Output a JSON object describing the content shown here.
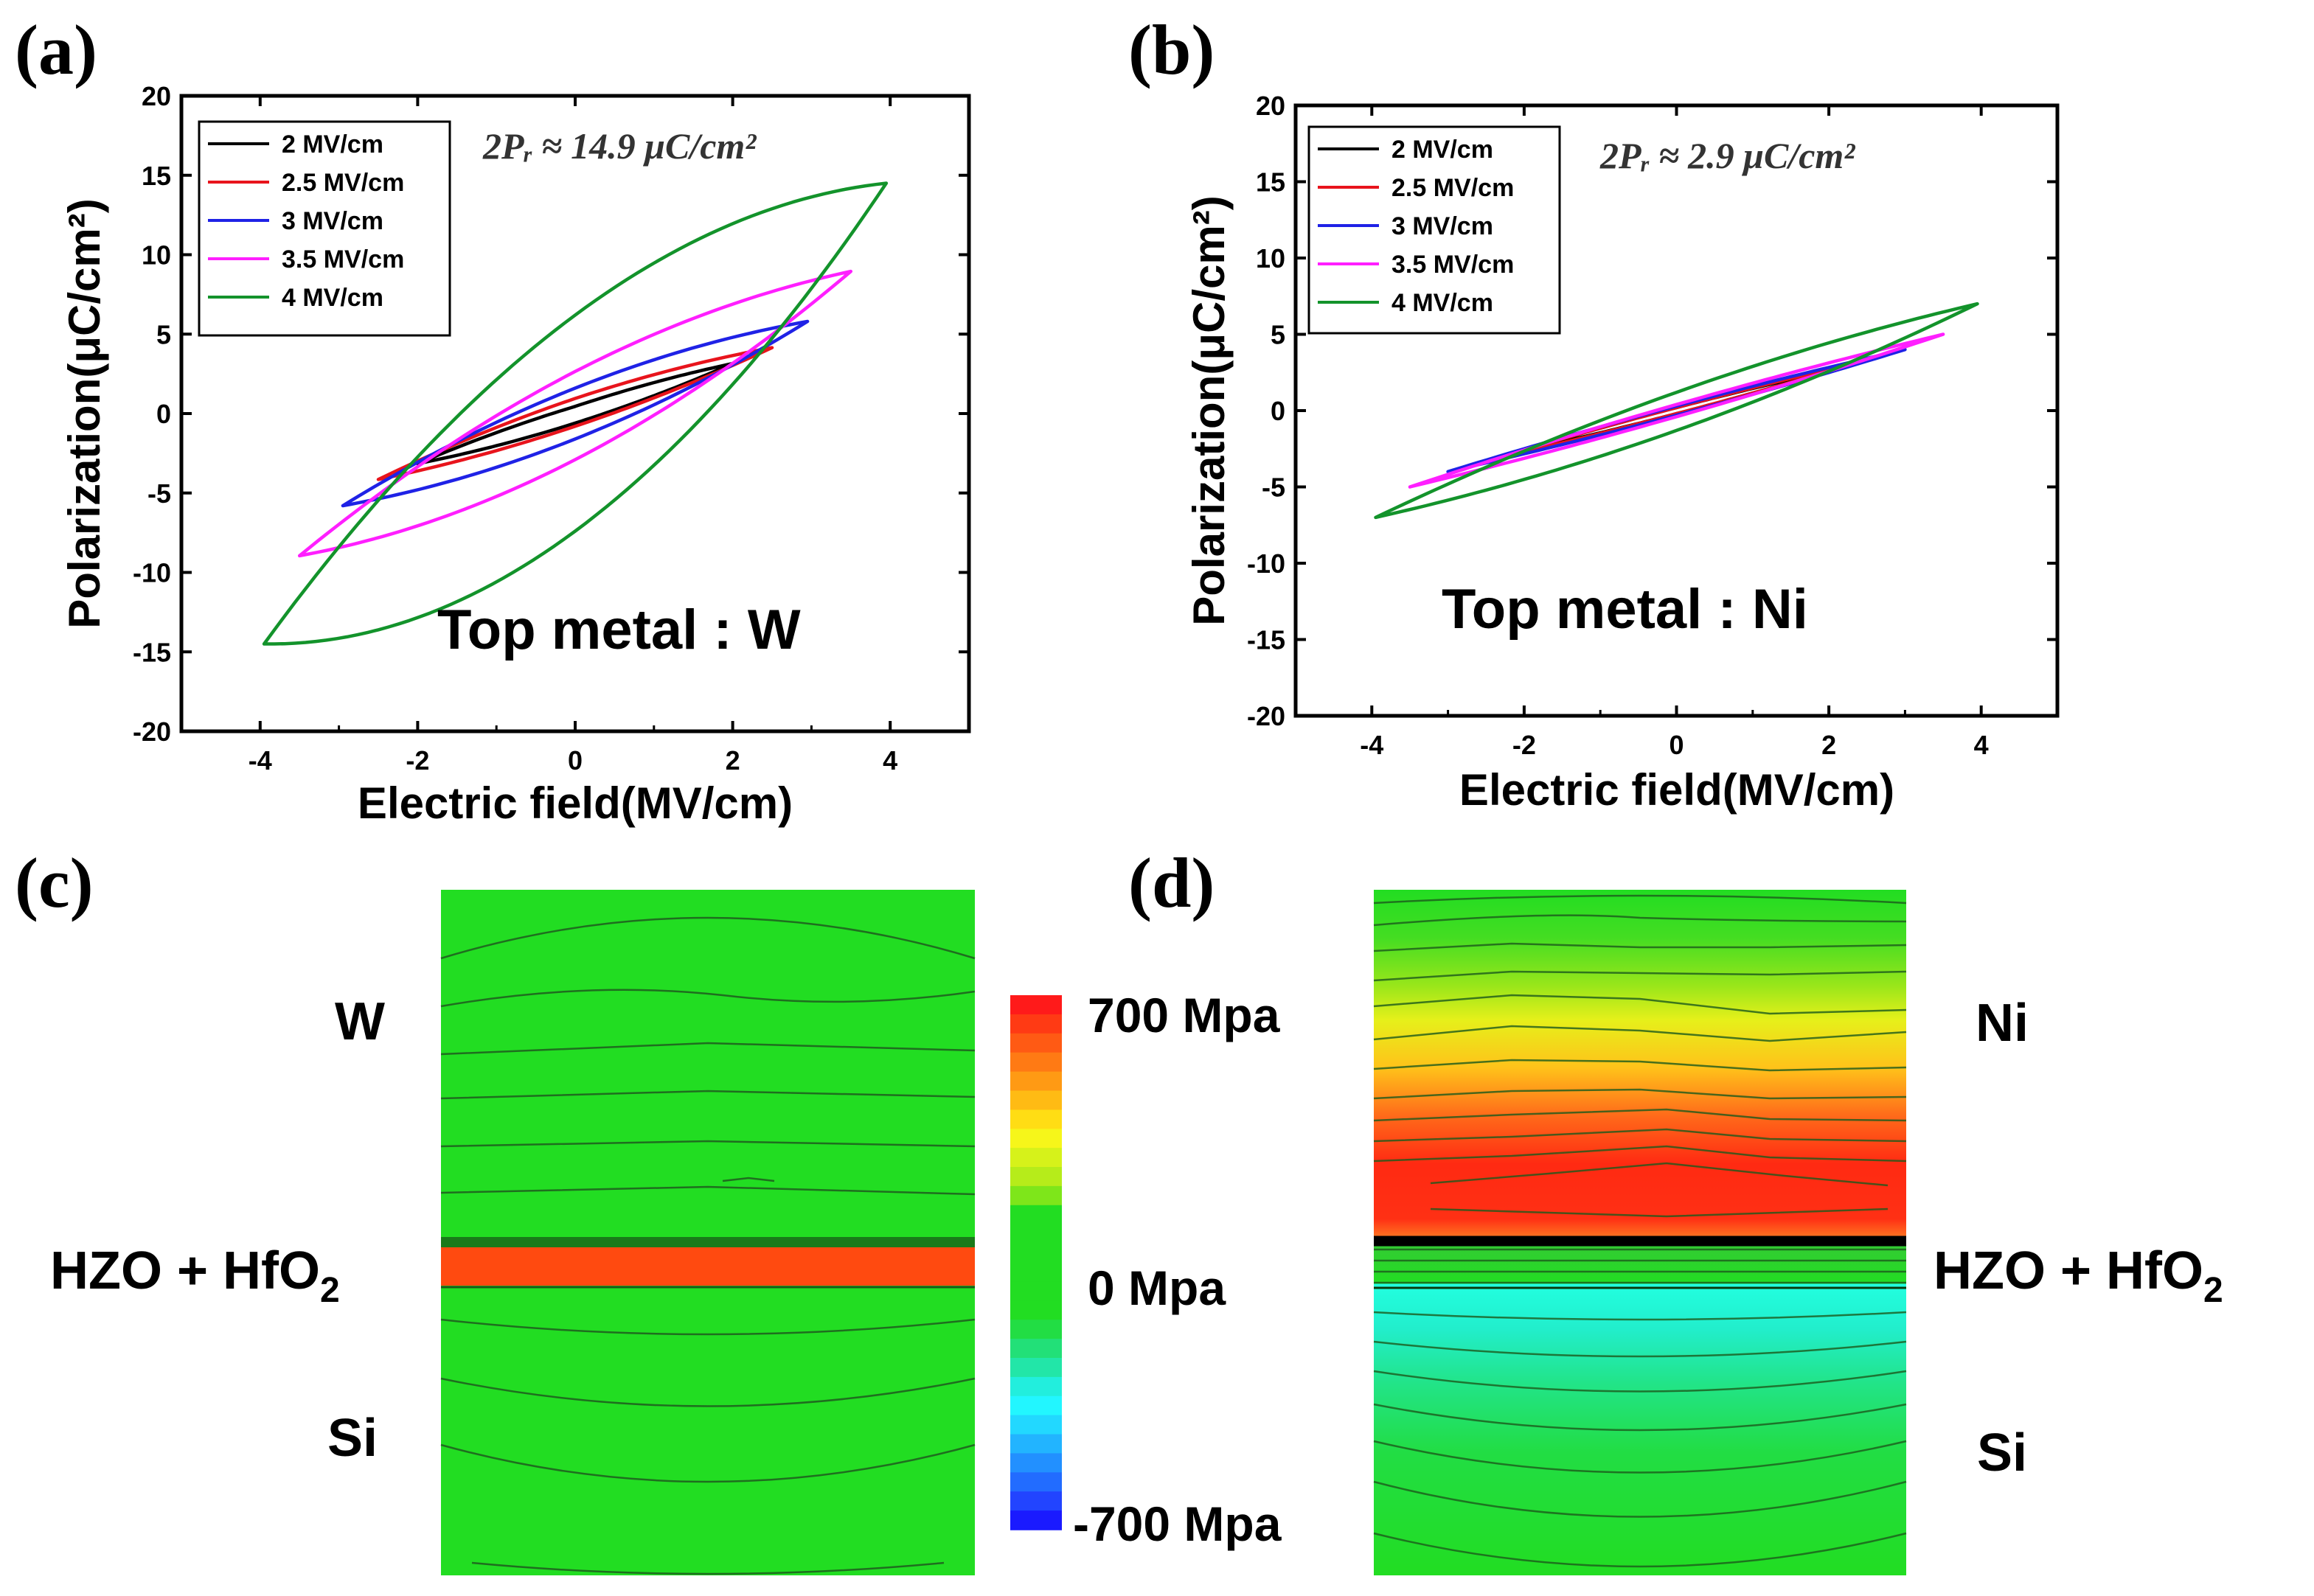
{
  "panels": {
    "a": "(a)",
    "b": "(b)",
    "c": "(c)",
    "d": "(d)"
  },
  "chart_data": [
    {
      "id": "a",
      "type": "line",
      "title": "",
      "xlabel": "Electric field(MV/cm)",
      "ylabel": "Polarization(μC/cm²)",
      "xlim": [
        -5,
        5
      ],
      "ylim": [
        -20,
        20
      ],
      "xticks": [
        -4,
        -2,
        0,
        2,
        4
      ],
      "yticks": [
        -20,
        -15,
        -10,
        -5,
        0,
        5,
        10,
        15,
        20
      ],
      "annotation": "2Pᵣ ≈ 14.9 μC/cm²",
      "note": "Top metal : W",
      "legend_position": "top-left",
      "series": [
        {
          "name": "2 MV/cm",
          "color": "#000000",
          "Emax": 2.0,
          "Pmax": 3.0,
          "Pmin": -3.3,
          "Pr_pos": 0.6,
          "Pr_neg": -0.6,
          "tip": 0.2
        },
        {
          "name": "2.5 MV/cm",
          "color": "#e8141c",
          "Emax": 2.5,
          "Pmax": 4.2,
          "Pmin": -4.1,
          "Pr_pos": 0.9,
          "Pr_neg": -0.8,
          "tip": 0.2
        },
        {
          "name": "3 MV/cm",
          "color": "#1f22e6",
          "Emax": 2.95,
          "Pmax": 5.8,
          "Pmin": -5.8,
          "Pr_pos": 1.6,
          "Pr_neg": -1.6,
          "tip": 0.25
        },
        {
          "name": "3.5 MV/cm",
          "color": "#ff1fff",
          "Emax": 3.5,
          "Pmax": 9.0,
          "Pmin": -8.9,
          "Pr_pos": 2.6,
          "Pr_neg": -2.9,
          "tip": 0.3
        },
        {
          "name": "4 MV/cm",
          "color": "#13932b",
          "Emax": 3.95,
          "Pmax": 14.5,
          "Pmin": -14.5,
          "Pr_pos": 6.2,
          "Pr_neg": -7.4,
          "tip": 0.4
        }
      ]
    },
    {
      "id": "b",
      "type": "line",
      "title": "",
      "xlabel": "Electric field(MV/cm)",
      "ylabel": "Polarization(μC/cm²)",
      "xlim": [
        -5,
        5
      ],
      "ylim": [
        -20,
        20
      ],
      "xticks": [
        -4,
        -2,
        0,
        2,
        4
      ],
      "yticks": [
        -20,
        -15,
        -10,
        -5,
        0,
        5,
        10,
        15,
        20
      ],
      "annotation": "2Pᵣ ≈ 2.9 μC/cm²",
      "note": "Top metal : Ni",
      "legend_position": "top-left",
      "series": [
        {
          "name": "2 MV/cm",
          "color": "#000000",
          "Emax": 2.0,
          "Pmax": 2.6,
          "Pmin": -2.6,
          "Pr_pos": 0.2,
          "Pr_neg": -0.2,
          "tip": 0.1
        },
        {
          "name": "2.5 MV/cm",
          "color": "#e8141c",
          "Emax": 2.5,
          "Pmax": 3.3,
          "Pmin": -3.3,
          "Pr_pos": 0.2,
          "Pr_neg": -0.2,
          "tip": 0.1
        },
        {
          "name": "3 MV/cm",
          "color": "#1f22e6",
          "Emax": 3.0,
          "Pmax": 4.0,
          "Pmin": -4.0,
          "Pr_pos": 0.3,
          "Pr_neg": -0.3,
          "tip": 0.1
        },
        {
          "name": "3.5 MV/cm",
          "color": "#ff1fff",
          "Emax": 3.5,
          "Pmax": 5.0,
          "Pmin": -5.0,
          "Pr_pos": 0.4,
          "Pr_neg": -0.4,
          "tip": 0.1
        },
        {
          "name": "4 MV/cm",
          "color": "#13932b",
          "Emax": 3.95,
          "Pmax": 7.0,
          "Pmin": -7.0,
          "Pr_pos": 1.2,
          "Pr_neg": -1.3,
          "tip": 0.15
        }
      ]
    }
  ],
  "stress_maps": {
    "c": {
      "top": "W",
      "middle": "HZO + HfO",
      "middle_sub": "2",
      "bottom": "Si"
    },
    "d": {
      "top": "Ni",
      "middle": "HZO + HfO",
      "middle_sub": "2",
      "bottom": "Si"
    }
  },
  "colorbar": {
    "max_label": "700 Mpa",
    "mid_label": "0 Mpa",
    "min_label": "-700 Mpa",
    "max": 700,
    "min": -700
  }
}
